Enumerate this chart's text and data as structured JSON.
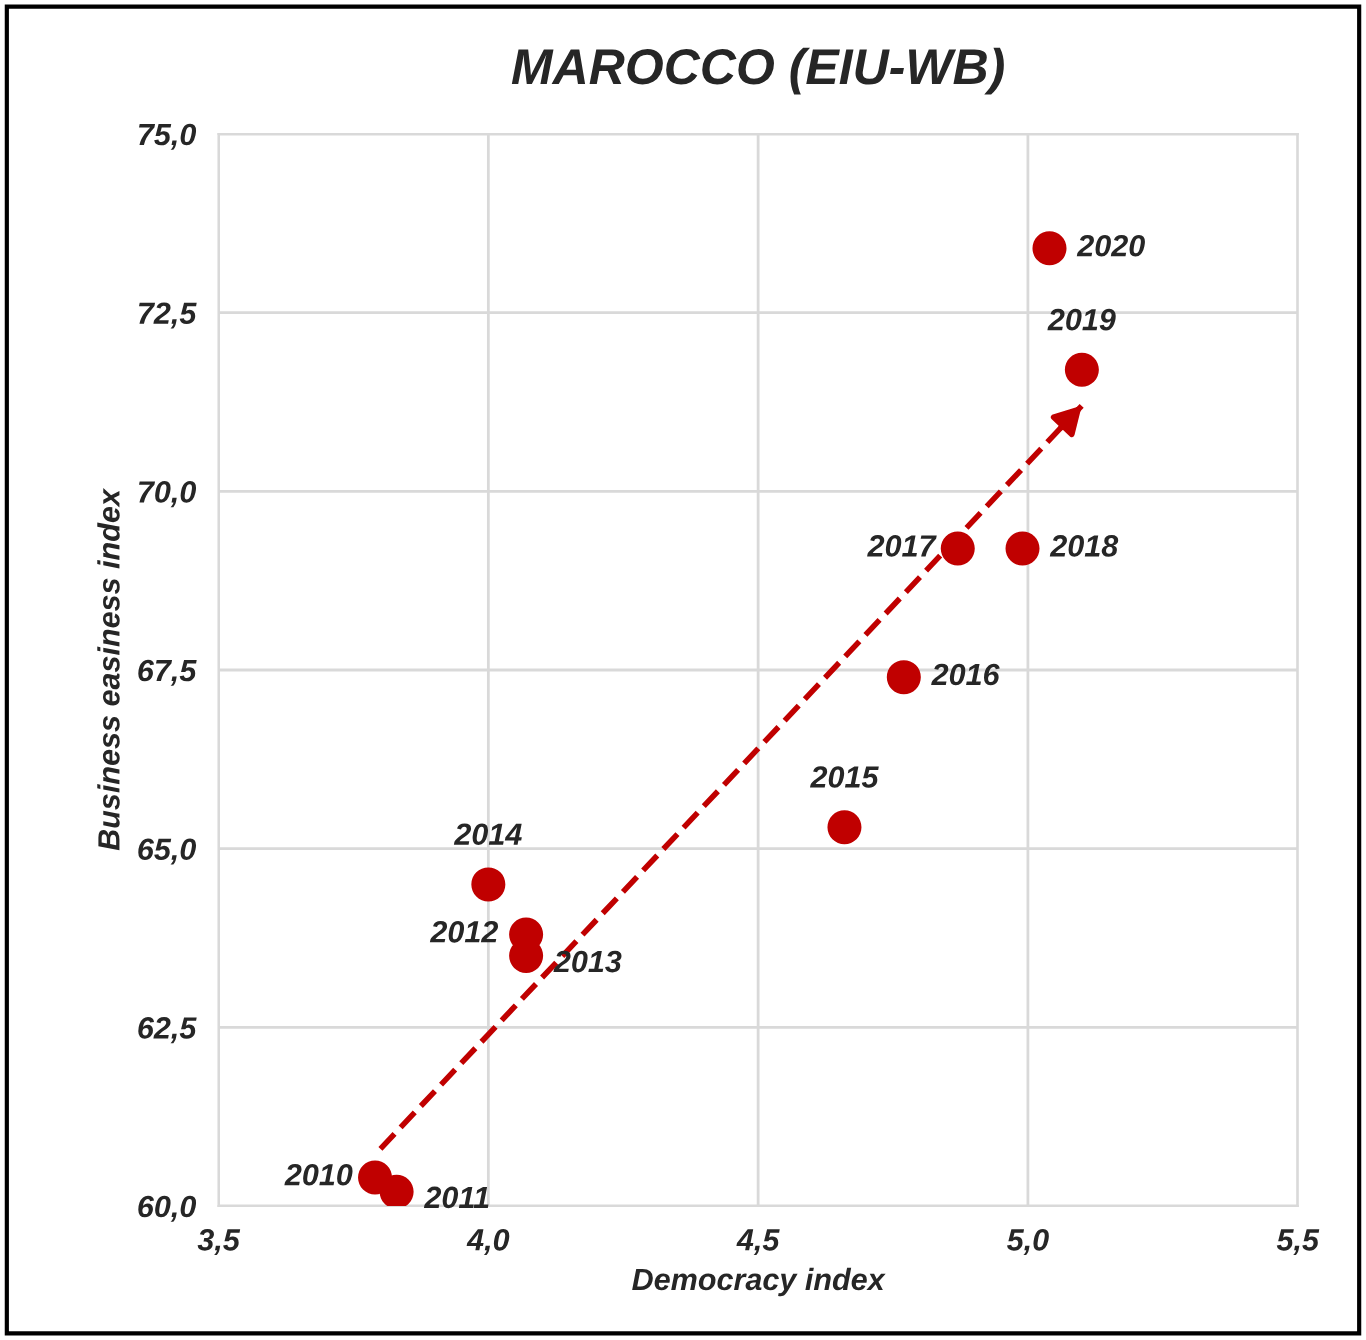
{
  "chart_data": {
    "type": "scatter",
    "title": "MAROCCO (EIU-WB)",
    "xlabel": "Democracy index",
    "ylabel": "Business easiness index",
    "xlim": [
      3.5,
      5.5
    ],
    "xticks": [
      {
        "value": 3.5,
        "label": "3,5"
      },
      {
        "value": 4.0,
        "label": "4,0"
      },
      {
        "value": 4.5,
        "label": "4,5"
      },
      {
        "value": 5.0,
        "label": "5,0"
      },
      {
        "value": 5.5,
        "label": "5,5"
      }
    ],
    "ylim": [
      60,
      75
    ],
    "yticks": [
      {
        "value": 60,
        "label": "60,0"
      },
      {
        "value": 62.5,
        "label": "62,5"
      },
      {
        "value": 65,
        "label": "65,0"
      },
      {
        "value": 67.5,
        "label": "67,5"
      },
      {
        "value": 70,
        "label": "70,0"
      },
      {
        "value": 72.5,
        "label": "72,5"
      },
      {
        "value": 75,
        "label": "75,0"
      }
    ],
    "grid": true,
    "legend": false,
    "marker": "circle",
    "series": [
      {
        "color": "#c00000",
        "x": [
          3.79,
          3.83,
          4.07,
          4.07,
          4.0,
          4.66,
          4.77,
          4.87,
          4.99,
          5.1,
          5.04
        ],
        "values": [
          60.4,
          60.2,
          63.8,
          63.5,
          64.5,
          65.3,
          67.4,
          69.2,
          69.2,
          71.7,
          73.4
        ]
      },
      {
        "type": "line",
        "color": "#c00000",
        "line_style": "dashed",
        "marker": "none",
        "x": [
          3.8,
          5.1
        ],
        "values": [
          60.8,
          71.2
        ]
      }
    ],
    "annotations": [
      {
        "text": "2010",
        "x": 3.79,
        "y": 60.4
      },
      {
        "text": "2011",
        "x": 3.83,
        "y": 60.2
      },
      {
        "text": "2012",
        "x": 4.07,
        "y": 63.8
      },
      {
        "text": "2013",
        "x": 4.07,
        "y": 63.5
      },
      {
        "text": "2014",
        "x": 4.0,
        "y": 64.5
      },
      {
        "text": "2015",
        "x": 4.66,
        "y": 65.3
      },
      {
        "text": "2016",
        "x": 4.77,
        "y": 67.4
      },
      {
        "text": "2017",
        "x": 4.87,
        "y": 69.2
      },
      {
        "text": "2018",
        "x": 4.99,
        "y": 69.2
      },
      {
        "text": "2019",
        "x": 5.1,
        "y": 71.7
      },
      {
        "text": "2020",
        "x": 5.04,
        "y": 73.4
      }
    ]
  }
}
